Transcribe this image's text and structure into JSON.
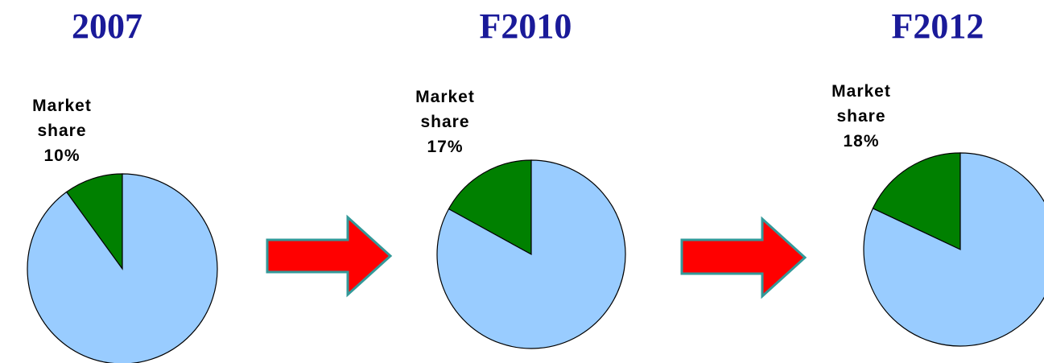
{
  "chart_data": [
    {
      "type": "pie",
      "title": "2007",
      "label": "Market share",
      "values": [
        10,
        90
      ],
      "value_labels": [
        "10%",
        null
      ],
      "colors": [
        "#008000",
        "#99ccff"
      ]
    },
    {
      "type": "pie",
      "title": "F2010",
      "label": "Market share",
      "values": [
        17,
        83
      ],
      "value_labels": [
        "17%",
        null
      ],
      "colors": [
        "#008000",
        "#99ccff"
      ]
    },
    {
      "type": "pie",
      "title": "F2012",
      "label": "Market share",
      "values": [
        18,
        82
      ],
      "value_labels": [
        "18%",
        null
      ],
      "colors": [
        "#008000",
        "#99ccff"
      ]
    }
  ]
}
